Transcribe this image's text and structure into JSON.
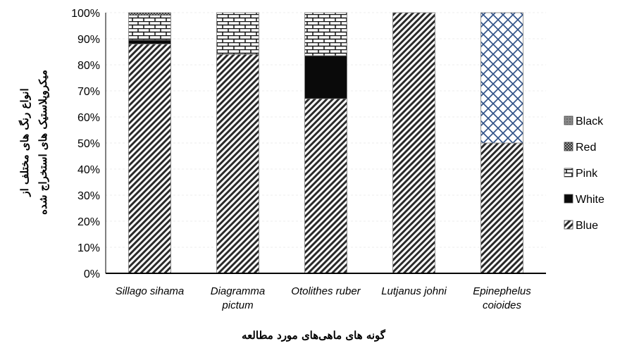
{
  "chart_data": {
    "type": "bar",
    "stacked": true,
    "percent": true,
    "categories": [
      [
        "Sillago sihama"
      ],
      [
        "Diagramma",
        "pictum"
      ],
      [
        "Otolithes ruber"
      ],
      [
        "Lutjanus johni"
      ],
      [
        "Epinephelus",
        "coioides"
      ]
    ],
    "series": [
      {
        "name": "Blue",
        "values": [
          88,
          84,
          67,
          100,
          50
        ]
      },
      {
        "name": "White",
        "values": [
          1.5,
          0,
          16.5,
          0,
          0
        ]
      },
      {
        "name": "Pink",
        "values": [
          9.5,
          16,
          16.5,
          0,
          50
        ]
      },
      {
        "name": "Red",
        "values": [
          1,
          0,
          0,
          0,
          0
        ]
      },
      {
        "name": "Black",
        "values": [
          0,
          0,
          0,
          0,
          0
        ]
      }
    ],
    "y_ticks": [
      "0%",
      "10%",
      "20%",
      "30%",
      "40%",
      "50%",
      "60%",
      "70%",
      "80%",
      "90%",
      "100%"
    ],
    "ylim": [
      0,
      100
    ],
    "xlabel": "گونه های ماهی‌های مورد مطالعه",
    "ylabel": [
      "انواع رنگ های مختلف از",
      "میکروپلاستیک های استخراج شده"
    ],
    "legend": [
      "Black",
      "Red",
      "Pink",
      "White",
      "Blue"
    ],
    "legend_position": "right",
    "grid": false
  }
}
